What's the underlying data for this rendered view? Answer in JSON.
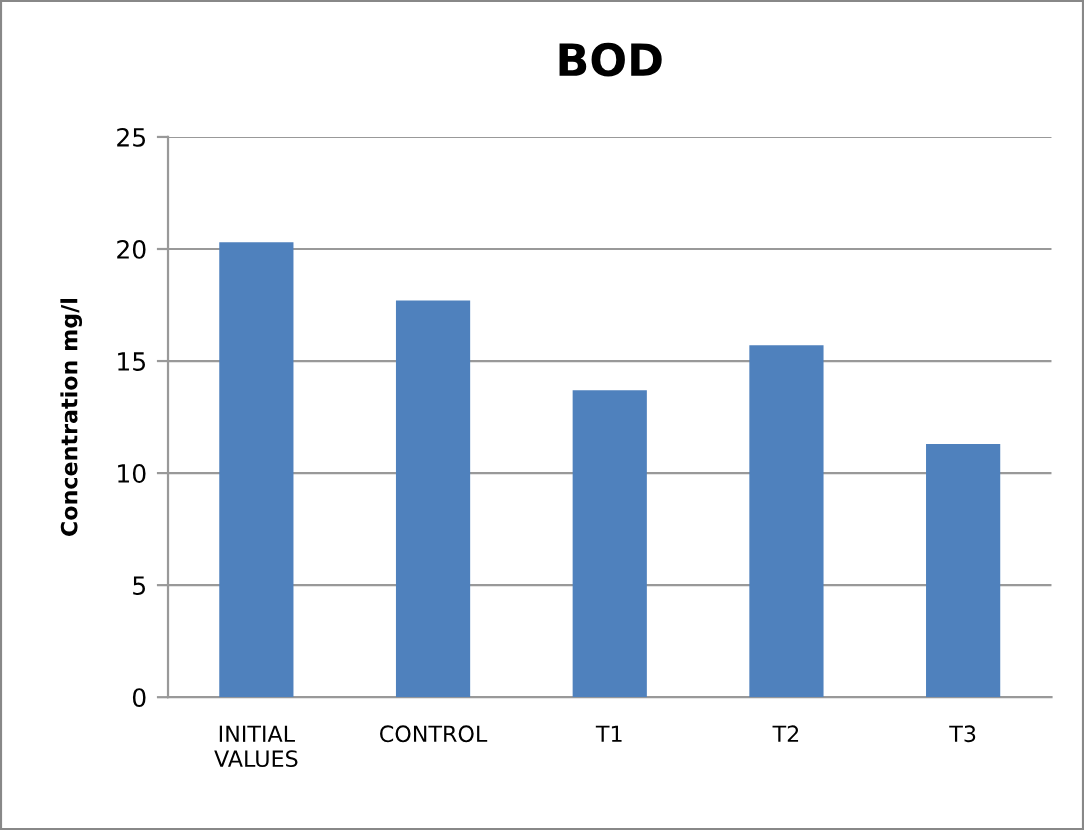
{
  "chart_data": {
    "type": "bar",
    "title": "BOD",
    "ylabel": "Concentration mg/l",
    "categories": [
      "INITIAL\nVALUES",
      "CONTROL",
      "T1",
      "T2",
      "T3"
    ],
    "values": [
      20.3,
      17.7,
      13.7,
      15.7,
      11.3
    ],
    "color": "#4f81bd",
    "ylim": [
      0,
      25
    ],
    "yticks": [
      0,
      5,
      10,
      15,
      20,
      25
    ],
    "grid": "y"
  }
}
